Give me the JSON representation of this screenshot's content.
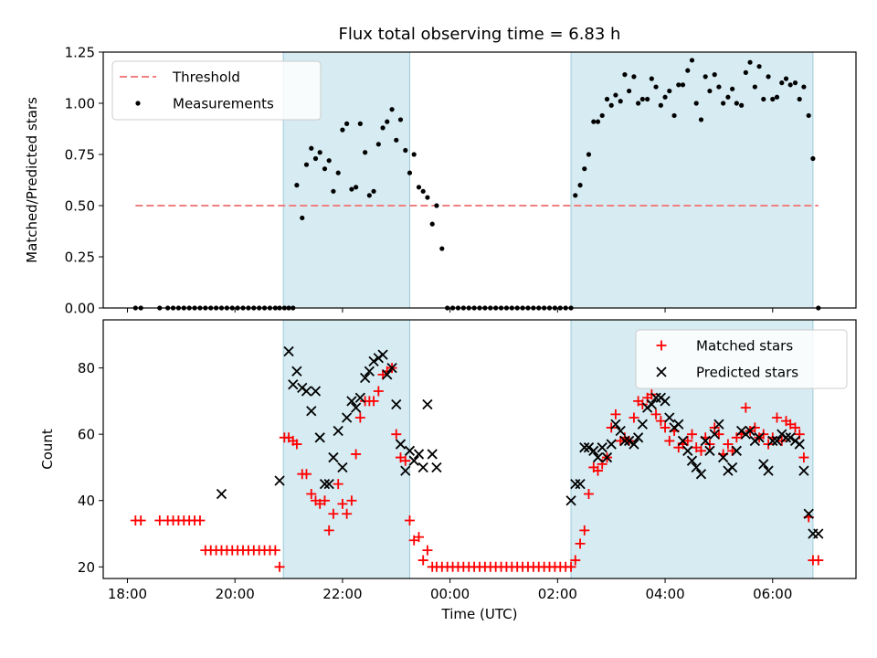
{
  "figure": {
    "title": "Flux total observing time = 6.83 h"
  },
  "chart_data": [
    {
      "type": "scatter",
      "title": "Flux total observing time = 6.83 h",
      "xlabel": "",
      "ylabel": "Matched/Predicted stars",
      "x_axis": "time (decimal hours, 24+ = next day)",
      "xlim": [
        17.55,
        31.55
      ],
      "ylim": [
        0,
        1.25
      ],
      "yticks": [
        "0.00",
        "0.25",
        "0.50",
        "0.75",
        "1.00",
        "1.25"
      ],
      "xticks": [
        18,
        20,
        22,
        24,
        26,
        28,
        30
      ],
      "shaded_spans": [
        [
          20.9,
          23.25
        ],
        [
          26.25,
          30.75
        ]
      ],
      "legend": {
        "position": "upper-left",
        "entries": [
          "Threshold",
          "Measurements"
        ]
      },
      "series": [
        {
          "name": "Threshold",
          "style": "dashed-line",
          "color": "#f08080",
          "x": [
            18.15,
            30.85
          ],
          "y": [
            0.5,
            0.5
          ]
        },
        {
          "name": "Measurements",
          "style": "dots",
          "color": "#000000",
          "x": [
            18.15,
            18.25,
            18.6,
            18.75,
            18.85,
            18.95,
            19.05,
            19.15,
            19.25,
            19.35,
            19.45,
            19.55,
            19.65,
            19.75,
            19.85,
            19.95,
            20.05,
            20.15,
            20.25,
            20.35,
            20.45,
            20.55,
            20.65,
            20.75,
            20.83,
            20.92,
            21.0,
            21.08,
            21.15,
            21.25,
            21.33,
            21.42,
            21.5,
            21.58,
            21.67,
            21.75,
            21.83,
            21.92,
            22.0,
            22.08,
            22.17,
            22.25,
            22.33,
            22.42,
            22.5,
            22.58,
            22.67,
            22.75,
            22.83,
            22.92,
            23.0,
            23.08,
            23.17,
            23.25,
            23.33,
            23.42,
            23.5,
            23.58,
            23.67,
            23.75,
            23.85,
            23.95,
            24.05,
            24.15,
            24.25,
            24.35,
            24.45,
            24.55,
            24.65,
            24.75,
            24.85,
            24.95,
            25.05,
            25.15,
            25.25,
            25.35,
            25.45,
            25.55,
            25.65,
            25.75,
            25.85,
            25.95,
            26.05,
            26.15,
            26.25,
            26.33,
            26.42,
            26.5,
            26.58,
            26.67,
            26.75,
            26.83,
            26.92,
            27.0,
            27.08,
            27.17,
            27.25,
            27.33,
            27.42,
            27.5,
            27.58,
            27.67,
            27.75,
            27.83,
            27.92,
            28.0,
            28.08,
            28.17,
            28.25,
            28.33,
            28.42,
            28.5,
            28.58,
            28.67,
            28.75,
            28.83,
            28.92,
            29.0,
            29.08,
            29.17,
            29.25,
            29.33,
            29.42,
            29.5,
            29.58,
            29.67,
            29.75,
            29.83,
            29.92,
            30.0,
            30.08,
            30.17,
            30.25,
            30.33,
            30.42,
            30.5,
            30.58,
            30.67,
            30.75,
            30.85
          ],
          "y": [
            0,
            0,
            0,
            0,
            0,
            0,
            0,
            0,
            0,
            0,
            0,
            0,
            0,
            0,
            0,
            0,
            0,
            0,
            0,
            0,
            0,
            0,
            0,
            0,
            0,
            0,
            0,
            0,
            0.6,
            0.44,
            0.7,
            0.78,
            0.73,
            0.76,
            0.68,
            0.72,
            0.57,
            0.66,
            0.87,
            0.9,
            0.58,
            0.59,
            0.9,
            0.76,
            0.55,
            0.57,
            0.8,
            0.88,
            0.91,
            0.97,
            0.82,
            0.92,
            0.77,
            0.66,
            0.75,
            0.59,
            0.57,
            0.54,
            0.41,
            0.5,
            0.29,
            0,
            0,
            0,
            0,
            0,
            0,
            0,
            0,
            0,
            0,
            0,
            0,
            0,
            0,
            0,
            0,
            0,
            0,
            0,
            0,
            0,
            0,
            0,
            0,
            0.55,
            0.6,
            0.68,
            0.75,
            0.91,
            0.91,
            0.94,
            1.02,
            0.99,
            1.04,
            1.01,
            1.14,
            1.06,
            1.13,
            1.0,
            1.02,
            1.02,
            1.12,
            1.08,
            0.99,
            1.03,
            1.06,
            0.94,
            1.09,
            1.09,
            1.16,
            1.21,
            1.0,
            0.92,
            1.13,
            1.06,
            1.14,
            1.08,
            1.0,
            1.03,
            1.07,
            1.0,
            0.99,
            1.15,
            1.2,
            1.08,
            1.18,
            1.02,
            1.13,
            1.02,
            1.03,
            1.1,
            1.12,
            1.09,
            1.1,
            1.02,
            1.08,
            0.94,
            0.73,
            0.0
          ]
        }
      ]
    },
    {
      "type": "scatter",
      "title": "",
      "xlabel": "Time (UTC)",
      "ylabel": "Count",
      "x_axis": "time (decimal hours, 24+ = next day)",
      "xlim": [
        17.55,
        31.55
      ],
      "ylim": [
        16.5,
        94.5
      ],
      "yticks": [
        "20",
        "40",
        "60",
        "80"
      ],
      "xticks": [
        "18:00",
        "20:00",
        "22:00",
        "00:00",
        "02:00",
        "04:00",
        "06:00"
      ],
      "shaded_spans": [
        [
          20.9,
          23.25
        ],
        [
          26.25,
          30.75
        ]
      ],
      "legend": {
        "position": "upper-right",
        "entries": [
          "Matched stars",
          "Predicted stars"
        ]
      },
      "series": [
        {
          "name": "Matched stars",
          "marker": "plus",
          "color": "#ff0000",
          "x": [
            18.15,
            18.25,
            18.6,
            18.75,
            18.85,
            18.95,
            19.05,
            19.15,
            19.25,
            19.35,
            19.45,
            19.55,
            19.65,
            19.75,
            19.85,
            19.95,
            20.05,
            20.15,
            20.25,
            20.35,
            20.45,
            20.55,
            20.65,
            20.75,
            20.83,
            20.92,
            21.0,
            21.08,
            21.15,
            21.25,
            21.33,
            21.42,
            21.5,
            21.58,
            21.67,
            21.75,
            21.83,
            21.92,
            22.0,
            22.08,
            22.17,
            22.25,
            22.33,
            22.42,
            22.5,
            22.58,
            22.67,
            22.75,
            22.83,
            22.92,
            23.0,
            23.08,
            23.17,
            23.25,
            23.33,
            23.42,
            23.5,
            23.58,
            23.67,
            23.75,
            23.85,
            23.95,
            24.05,
            24.15,
            24.25,
            24.35,
            24.45,
            24.55,
            24.65,
            24.75,
            24.85,
            24.95,
            25.05,
            25.15,
            25.25,
            25.35,
            25.45,
            25.55,
            25.65,
            25.75,
            25.85,
            25.95,
            26.05,
            26.15,
            26.25,
            26.33,
            26.42,
            26.5,
            26.58,
            26.67,
            26.75,
            26.83,
            26.92,
            27.0,
            27.08,
            27.17,
            27.25,
            27.33,
            27.42,
            27.5,
            27.58,
            27.67,
            27.75,
            27.83,
            27.92,
            28.0,
            28.08,
            28.17,
            28.25,
            28.33,
            28.42,
            28.5,
            28.58,
            28.67,
            28.75,
            28.83,
            28.92,
            29.0,
            29.08,
            29.17,
            29.25,
            29.33,
            29.42,
            29.5,
            29.58,
            29.67,
            29.75,
            29.83,
            29.92,
            30.0,
            30.08,
            30.17,
            30.25,
            30.33,
            30.42,
            30.5,
            30.58,
            30.67,
            30.75,
            30.85
          ],
          "y": [
            34,
            34,
            34,
            34,
            34,
            34,
            34,
            34,
            34,
            34,
            25,
            25,
            25,
            25,
            25,
            25,
            25,
            25,
            25,
            25,
            25,
            25,
            25,
            25,
            20,
            59,
            59,
            58,
            57,
            48,
            48,
            42,
            40,
            39,
            40,
            31,
            36,
            45,
            39,
            36,
            40,
            54,
            65,
            70,
            70,
            70,
            73,
            78,
            79,
            80,
            60,
            53,
            52,
            34,
            28,
            29,
            22,
            25,
            20,
            20,
            20,
            20,
            20,
            20,
            20,
            20,
            20,
            20,
            20,
            20,
            20,
            20,
            20,
            20,
            20,
            20,
            20,
            20,
            20,
            20,
            20,
            20,
            20,
            20,
            20,
            22,
            27,
            31,
            42,
            50,
            49,
            51,
            53,
            62,
            66,
            58,
            59,
            58,
            65,
            70,
            69,
            71,
            72,
            66,
            64,
            62,
            58,
            61,
            56,
            57,
            58,
            60,
            56,
            55,
            59,
            57,
            62,
            60,
            54,
            57,
            55,
            59,
            60,
            68,
            61,
            62,
            59,
            60,
            57,
            59,
            65,
            58,
            64,
            63,
            62,
            60,
            53,
            35,
            22,
            22
          ]
        },
        {
          "name": "Predicted stars",
          "marker": "x",
          "color": "#000000",
          "x": [
            19.75,
            20.83,
            21.0,
            21.08,
            21.15,
            21.25,
            21.33,
            21.42,
            21.5,
            21.58,
            21.67,
            21.75,
            21.83,
            21.92,
            22.0,
            22.08,
            22.17,
            22.25,
            22.33,
            22.42,
            22.5,
            22.58,
            22.67,
            22.75,
            22.83,
            22.92,
            23.0,
            23.08,
            23.17,
            23.25,
            23.33,
            23.42,
            23.5,
            23.58,
            23.67,
            23.75,
            26.25,
            26.33,
            26.42,
            26.5,
            26.58,
            26.67,
            26.75,
            26.83,
            26.92,
            27.0,
            27.08,
            27.17,
            27.25,
            27.33,
            27.42,
            27.5,
            27.58,
            27.67,
            27.75,
            27.83,
            27.92,
            28.0,
            28.08,
            28.17,
            28.25,
            28.33,
            28.42,
            28.5,
            28.58,
            28.67,
            28.75,
            28.83,
            28.92,
            29.0,
            29.08,
            29.17,
            29.25,
            29.33,
            29.42,
            29.5,
            29.58,
            29.67,
            29.75,
            29.83,
            29.92,
            30.0,
            30.08,
            30.17,
            30.25,
            30.33,
            30.42,
            30.5,
            30.58,
            30.67,
            30.75,
            30.85
          ],
          "y": [
            42,
            46,
            85,
            75,
            79,
            74,
            73,
            67,
            73,
            59,
            45,
            45,
            53,
            61,
            50,
            65,
            70,
            68,
            71,
            77,
            79,
            82,
            83,
            84,
            78,
            80,
            69,
            57,
            49,
            55,
            52,
            54,
            50,
            69,
            54,
            50,
            40,
            45,
            45,
            56,
            56,
            55,
            53,
            56,
            53,
            57,
            63,
            61,
            58,
            58,
            57,
            59,
            63,
            68,
            69,
            71,
            71,
            70,
            65,
            62,
            63,
            58,
            55,
            52,
            50,
            48,
            58,
            55,
            60,
            63,
            53,
            49,
            50,
            55,
            61,
            60,
            61,
            58,
            59,
            51,
            49,
            58,
            58,
            60,
            59,
            59,
            58,
            57,
            49,
            36,
            30,
            30
          ]
        }
      ]
    }
  ]
}
